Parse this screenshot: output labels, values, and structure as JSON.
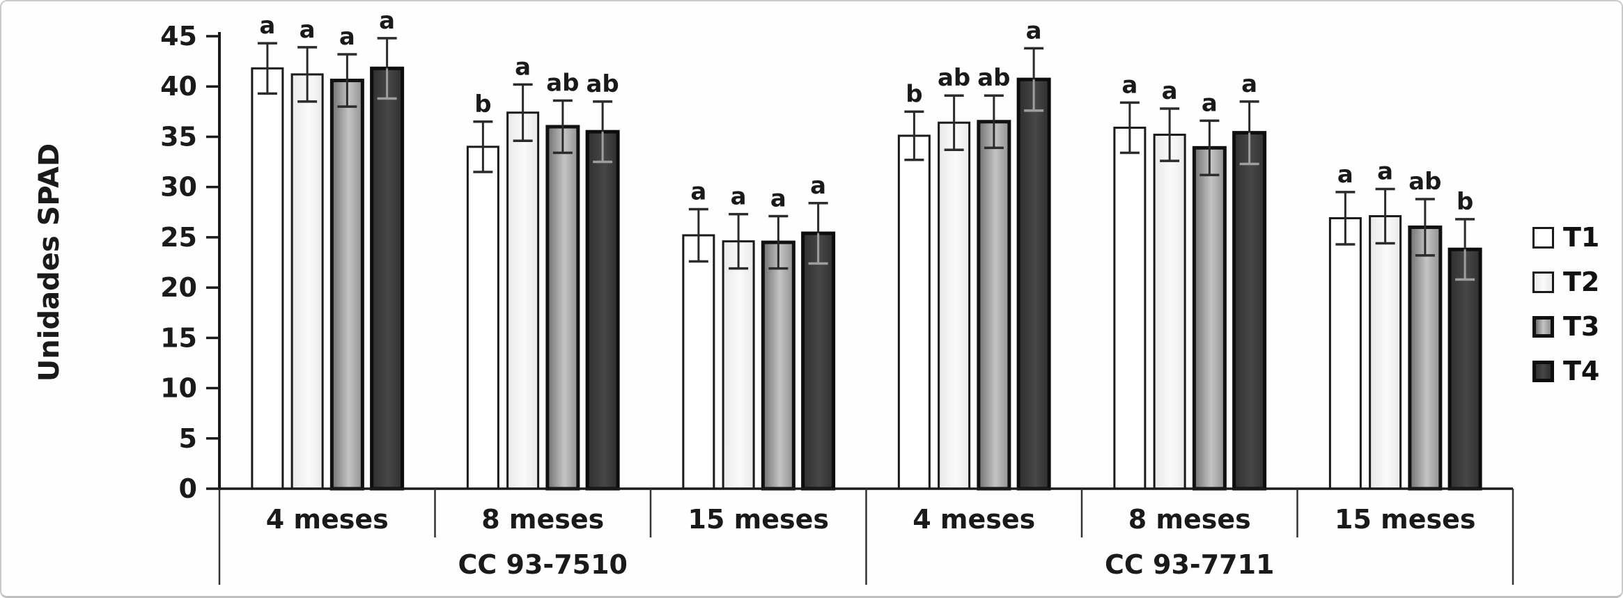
{
  "chart_data": {
    "type": "bar",
    "title": "",
    "xlabel": "",
    "ylabel": "Unidades SPAD",
    "ylim": [
      0,
      45
    ],
    "yticks": [
      0,
      5,
      10,
      15,
      20,
      25,
      30,
      35,
      40,
      45
    ],
    "grid": false,
    "legend_position": "right",
    "categories": [
      "4 meses",
      "8 meses",
      "15 meses"
    ],
    "supercategories": [
      "CC 93-7510",
      "CC 93-7711"
    ],
    "error_bar_color": "#2b2b2b",
    "axis_color": "#1a1a1a",
    "letter_color": "#1f1f1f",
    "series": [
      {
        "name": "T1",
        "fill_stops": [
          "#ffffff"
        ],
        "stroke": "#1a1a1a",
        "stroke_width": 3,
        "values": [
          41.8,
          34.0,
          25.2,
          35.1,
          35.9,
          26.9
        ],
        "errors": [
          2.5,
          2.5,
          2.6,
          2.4,
          2.5,
          2.6
        ],
        "letters": [
          "a",
          "b",
          "a",
          "b",
          "a",
          "a"
        ]
      },
      {
        "name": "T2",
        "fill_stops": [
          "#e9e9e9",
          "#fafafa",
          "#e9e9e9"
        ],
        "stroke": "#1a1a1a",
        "stroke_width": 3,
        "values": [
          41.2,
          37.4,
          24.6,
          36.4,
          35.2,
          27.1
        ],
        "errors": [
          2.7,
          2.8,
          2.7,
          2.7,
          2.6,
          2.7
        ],
        "letters": [
          "a",
          "a",
          "a",
          "ab",
          "a",
          "a"
        ]
      },
      {
        "name": "T3",
        "fill_stops": [
          "#6f6f6f",
          "#c4c4c4",
          "#909090"
        ],
        "stroke": "#111111",
        "stroke_width": 5,
        "values": [
          40.6,
          36.0,
          24.5,
          36.5,
          33.9,
          26.0
        ],
        "errors": [
          2.6,
          2.6,
          2.6,
          2.6,
          2.7,
          2.8
        ],
        "letters": [
          "a",
          "ab",
          "a",
          "ab",
          "a",
          "ab"
        ]
      },
      {
        "name": "T4",
        "fill_stops": [
          "#2f2f2f",
          "#474747",
          "#2f2f2f"
        ],
        "stroke": "#0d0d0d",
        "stroke_width": 5,
        "whisker_inside_color": "#9e9e9e",
        "values": [
          41.8,
          35.5,
          25.4,
          40.7,
          35.4,
          23.8
        ],
        "errors": [
          3.0,
          3.0,
          3.0,
          3.1,
          3.1,
          3.0
        ],
        "letters": [
          "a",
          "ab",
          "a",
          "a",
          "a",
          "b"
        ]
      }
    ]
  },
  "legend": {
    "items": [
      {
        "label": "T1"
      },
      {
        "label": "T2"
      },
      {
        "label": "T3"
      },
      {
        "label": "T4"
      }
    ]
  }
}
